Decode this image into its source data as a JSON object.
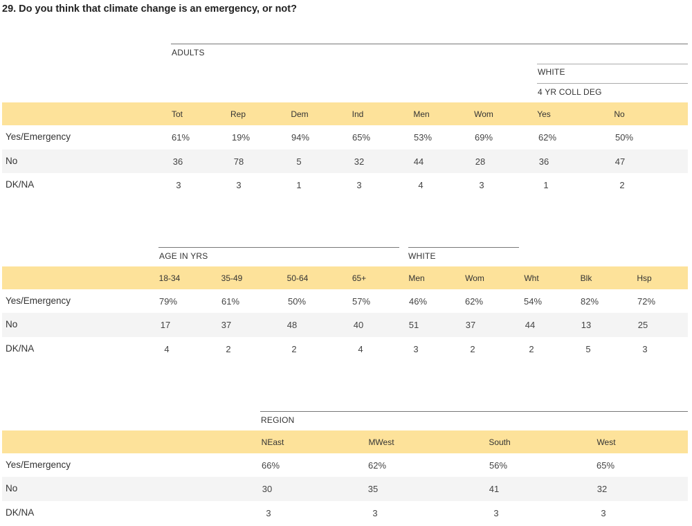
{
  "title": "29. Do you think that climate change is an emergency, or not?",
  "colors": {
    "header_band": "#fde29a",
    "row_shade": "#f4f4f4"
  },
  "tables": [
    {
      "groups": [
        "ADULTS",
        "WHITE",
        "4 YR COLL DEG"
      ],
      "columns": [
        "Tot",
        "Rep",
        "Dem",
        "Ind",
        "Men",
        "Wom",
        "Yes",
        "No"
      ],
      "rows": [
        {
          "label": "Yes/Emergency",
          "values": [
            "61%",
            "19%",
            "94%",
            "65%",
            "53%",
            "69%",
            "62%",
            "50%"
          ]
        },
        {
          "label": "No",
          "values": [
            "36",
            "78",
            "5",
            "32",
            "44",
            "28",
            "36",
            "47"
          ]
        },
        {
          "label": "DK/NA",
          "values": [
            "3",
            "3",
            "1",
            "3",
            "4",
            "3",
            "1",
            "2"
          ]
        }
      ]
    },
    {
      "groups": [
        "AGE IN YRS",
        "WHITE"
      ],
      "columns": [
        "18-34",
        "35-49",
        "50-64",
        "65+",
        "Men",
        "Wom",
        "Wht",
        "Blk",
        "Hsp"
      ],
      "rows": [
        {
          "label": "Yes/Emergency",
          "values": [
            "79%",
            "61%",
            "50%",
            "57%",
            "46%",
            "62%",
            "54%",
            "82%",
            "72%"
          ]
        },
        {
          "label": "No",
          "values": [
            "17",
            "37",
            "48",
            "40",
            "51",
            "37",
            "44",
            "13",
            "25"
          ]
        },
        {
          "label": "DK/NA",
          "values": [
            "4",
            "2",
            "2",
            "4",
            "3",
            "2",
            "2",
            "5",
            "3"
          ]
        }
      ]
    },
    {
      "groups": [
        "REGION"
      ],
      "columns": [
        "NEast",
        "MWest",
        "South",
        "West"
      ],
      "rows": [
        {
          "label": "Yes/Emergency",
          "values": [
            "66%",
            "62%",
            "56%",
            "65%"
          ]
        },
        {
          "label": "No",
          "values": [
            "30",
            "35",
            "41",
            "32"
          ]
        },
        {
          "label": "DK/NA",
          "values": [
            "3",
            "3",
            "3",
            "3"
          ]
        }
      ]
    }
  ]
}
